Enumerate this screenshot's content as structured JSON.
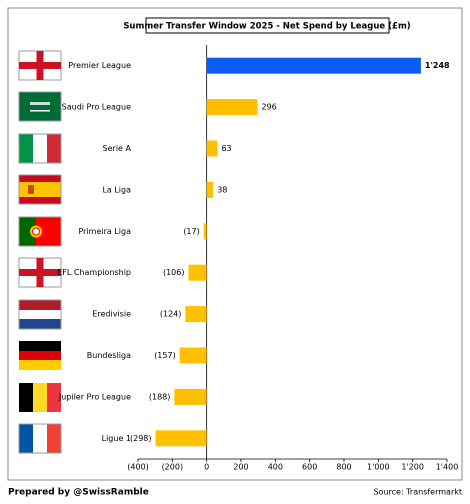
{
  "chart_data": {
    "type": "hbar",
    "title": "Summer Transfer Window 2025 - Net Spend by League (£m)",
    "categories": [
      "Premier League",
      "Saudi Pro League",
      "Serie A",
      "La Liga",
      "Primeira Liga",
      "EFL Championship",
      "Eredivisie",
      "Bundesliga",
      "Jupiler Pro League",
      "Ligue 1"
    ],
    "values": [
      1248,
      296,
      63,
      38,
      -17,
      -106,
      -124,
      -157,
      -188,
      -298
    ],
    "value_labels": [
      "1'248",
      "296",
      "63",
      "38",
      "(17)",
      "(106)",
      "(124)",
      "(157)",
      "(188)",
      "(298)"
    ],
    "value_label_weights": [
      "bold",
      "normal",
      "normal",
      "normal",
      "normal",
      "normal",
      "normal",
      "normal",
      "normal",
      "normal"
    ],
    "colors": [
      "#0a5cf5",
      "#ffc000",
      "#ffc000",
      "#ffc000",
      "#ffc000",
      "#ffc000",
      "#ffc000",
      "#ffc000",
      "#ffc000",
      "#ffc000"
    ],
    "negative_label_color": "#c00000",
    "xlim": [
      -400,
      1400
    ],
    "xticks": [
      {
        "value": -400,
        "label": "(400)"
      },
      {
        "value": -200,
        "label": "(200)"
      },
      0,
      200,
      400,
      600,
      800,
      {
        "value": 1000,
        "label": "1'000"
      },
      {
        "value": 1200,
        "label": "1'200"
      },
      {
        "value": 1400,
        "label": "1'400"
      }
    ]
  },
  "footer": {
    "credit": "Prepared by @SwissRamble",
    "source": "Source: Transfermarkt"
  }
}
